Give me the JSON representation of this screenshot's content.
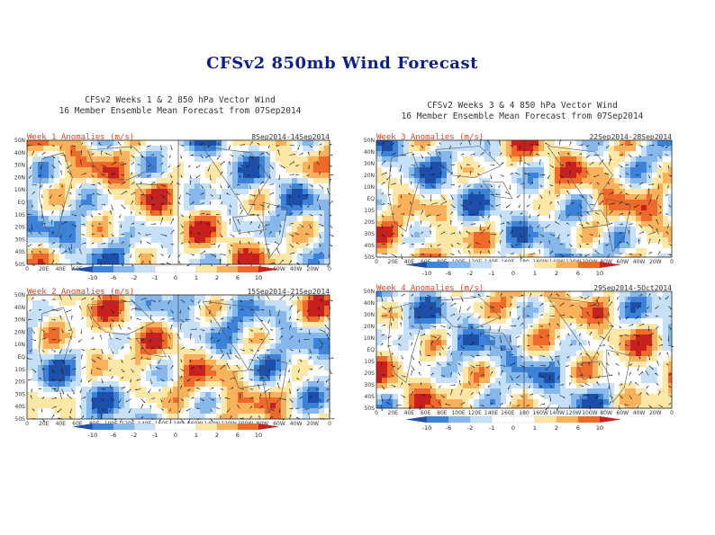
{
  "slide": {
    "title": "CFSv2 850mb Wind Forecast"
  },
  "figures": [
    {
      "header_line1": "CFSv2 Weeks 1 & 2 850 hPa Vector Wind",
      "header_line2": "16 Member Ensemble Mean Forecast from 07Sep2014"
    },
    {
      "header_line1": "CFSv2 Weeks 3 & 4 850 hPa Vector Wind",
      "header_line2": "16 Member Ensemble Mean Forecast from 07Sep2014"
    }
  ],
  "colors": {
    "neg10": "#1d4fa8",
    "neg6": "#3b82d8",
    "neg2": "#86b8ec",
    "neg1": "#c5e0f7",
    "zero": "#ffffff",
    "pos1": "#fde7a6",
    "pos2": "#f9b25b",
    "pos6": "#ee6a2a",
    "pos10": "#c8201e",
    "arrow": "#111111",
    "panel_title": "#e0442a",
    "slide_title": "#0b1f8f"
  },
  "colorbar": {
    "labels": [
      "-10",
      "-6",
      "-2",
      "-1",
      "0",
      "1",
      "2",
      "6",
      "10"
    ]
  },
  "lat_labels": [
    "50N",
    "40N",
    "30N",
    "20N",
    "10N",
    "EQ",
    "10S",
    "20S",
    "30S",
    "40S",
    "50S"
  ],
  "lon_labels": [
    "0",
    "20E",
    "40E",
    "60E",
    "80E",
    "100E",
    "120E",
    "140E",
    "160E",
    "180",
    "160W",
    "140W",
    "120W",
    "100W",
    "80W",
    "60W",
    "40W",
    "20W",
    "0"
  ],
  "panels": [
    {
      "id": "week1",
      "title": "Week 1 Anomalies (m/s)",
      "dates": "8Sep2014-14Sep2014"
    },
    {
      "id": "week3",
      "title": "Week 3 Anomalies (m/s)",
      "dates": "22Sep2014-28Sep2014"
    },
    {
      "id": "week2",
      "title": "Week 2 Anomalies (m/s)",
      "dates": "15Sep2014-21Sep2014"
    },
    {
      "id": "week4",
      "title": "Week 4 Anomalies (m/s)",
      "dates": "29Sep2014-5Oct2014"
    }
  ]
}
